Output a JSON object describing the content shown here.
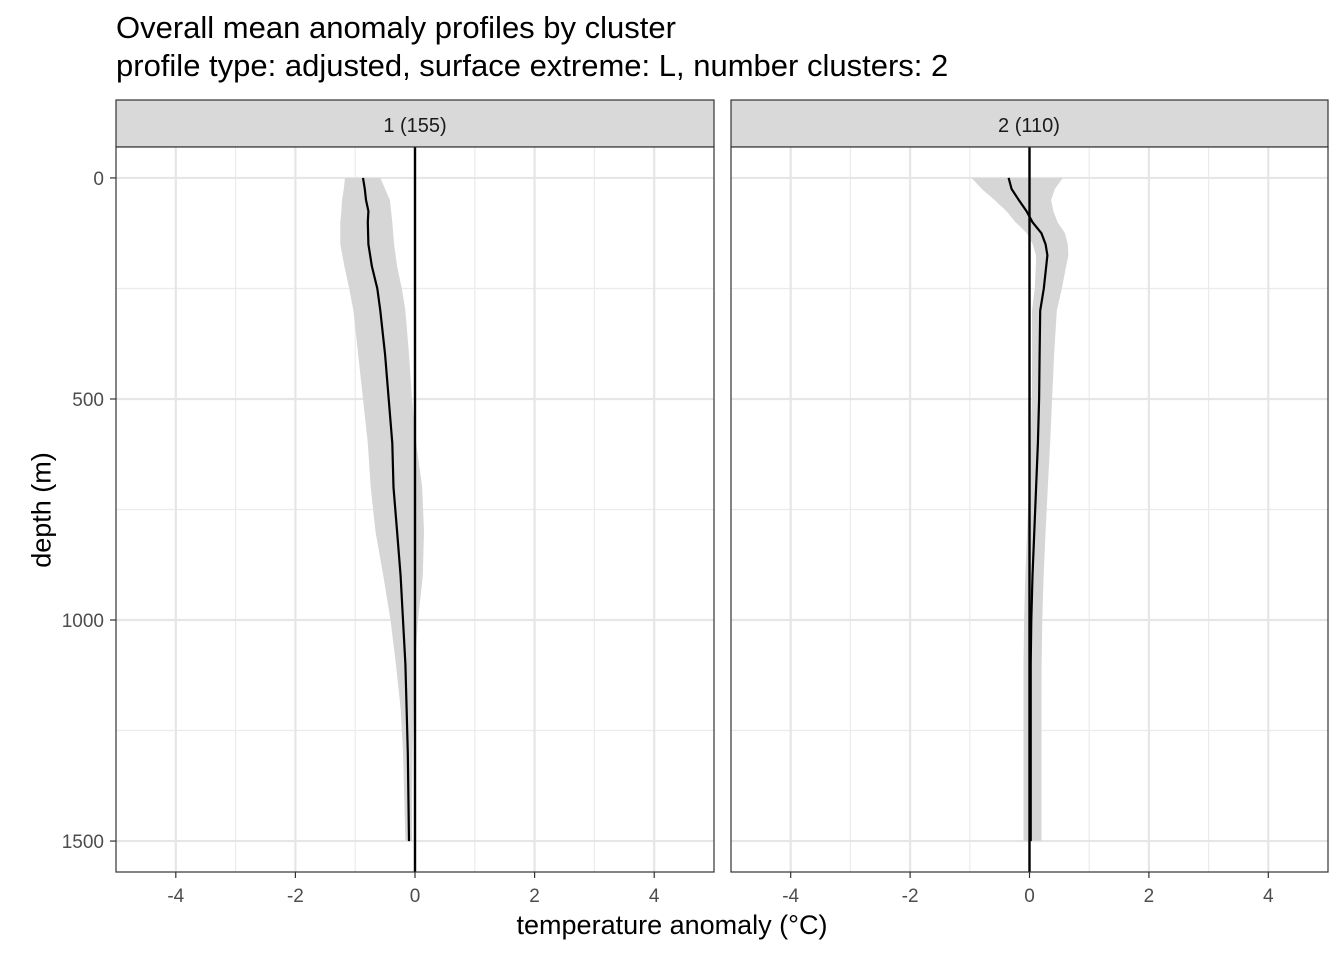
{
  "chart_data": {
    "type": "line",
    "title": "Overall mean anomaly profiles by cluster",
    "subtitle": "profile type: adjusted, surface extreme: L, number clusters: 2",
    "xlabel": "temperature anomaly (°C)",
    "ylabel": "depth (m)",
    "xlim": [
      -5,
      5
    ],
    "ylim": [
      -70,
      1570
    ],
    "y_reversed": true,
    "x_ticks": [
      -4,
      -2,
      0,
      2,
      4
    ],
    "x_tick_labels": [
      "-4",
      "-2",
      "0",
      "2",
      "4"
    ],
    "y_ticks": [
      0,
      500,
      1000,
      1500
    ],
    "y_tick_labels": [
      "0",
      "500",
      "1000",
      "1500"
    ],
    "grid": true,
    "reference_line_x": 0,
    "panels": [
      {
        "label": "1 (155)",
        "depth": [
          0,
          25,
          50,
          75,
          100,
          150,
          200,
          250,
          300,
          400,
          500,
          600,
          700,
          800,
          900,
          1000,
          1100,
          1200,
          1300,
          1400,
          1500
        ],
        "mean": [
          -0.87,
          -0.84,
          -0.82,
          -0.78,
          -0.79,
          -0.78,
          -0.72,
          -0.63,
          -0.58,
          -0.5,
          -0.44,
          -0.38,
          -0.36,
          -0.3,
          -0.24,
          -0.2,
          -0.16,
          -0.14,
          -0.12,
          -0.11,
          -0.1
        ],
        "lower": [
          -1.17,
          -1.19,
          -1.22,
          -1.23,
          -1.25,
          -1.25,
          -1.18,
          -1.1,
          -1.03,
          -0.95,
          -0.87,
          -0.79,
          -0.74,
          -0.66,
          -0.53,
          -0.41,
          -0.32,
          -0.24,
          -0.2,
          -0.18,
          -0.16
        ],
        "upper": [
          -0.58,
          -0.5,
          -0.42,
          -0.4,
          -0.38,
          -0.35,
          -0.3,
          -0.22,
          -0.16,
          -0.1,
          -0.05,
          0.02,
          0.12,
          0.15,
          0.13,
          0.05,
          0.0,
          -0.02,
          -0.04,
          -0.05,
          -0.05
        ]
      },
      {
        "label": "2 (110)",
        "depth": [
          0,
          25,
          50,
          75,
          100,
          125,
          150,
          175,
          200,
          250,
          300,
          400,
          500,
          600,
          700,
          800,
          900,
          1000,
          1100,
          1200,
          1300,
          1400,
          1500
        ],
        "mean": [
          -0.35,
          -0.3,
          -0.18,
          -0.05,
          0.05,
          0.2,
          0.27,
          0.3,
          0.28,
          0.24,
          0.18,
          0.17,
          0.16,
          0.14,
          0.11,
          0.08,
          0.05,
          0.03,
          0.02,
          0.02,
          0.02,
          0.02,
          0.02
        ]
      }
    ]
  }
}
